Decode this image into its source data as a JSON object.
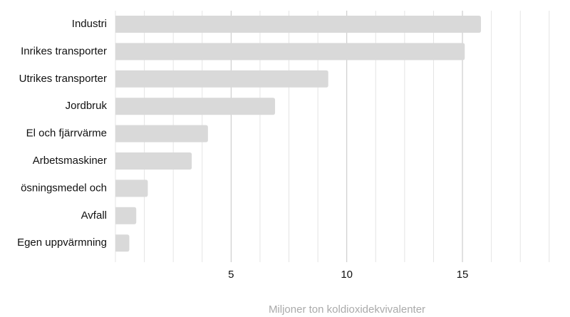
{
  "chart_data": {
    "type": "hbar",
    "categories": [
      "Industri",
      "Inrikes transporter",
      "Utrikes transporter",
      "Jordbruk",
      "El och fjärrvärme",
      "Arbetsmaskiner",
      "ösningsmedel och",
      "Avfall",
      "Egen uppvärmning"
    ],
    "values": [
      15.8,
      15.1,
      9.2,
      6.9,
      4.0,
      3.3,
      1.4,
      0.9,
      0.6
    ],
    "color": "#d9d9d9",
    "x_label": "Miljoner ton koldioxidekvivalenter",
    "xlim": [
      0,
      19.2
    ],
    "xticks": [
      5,
      10,
      15
    ],
    "minor_grid_xticks": [
      1.25,
      2.5,
      3.75,
      6.25,
      7.5,
      8.75,
      11.25,
      12.5,
      13.75,
      16.25,
      17.5,
      18.75
    ],
    "grid": true
  }
}
